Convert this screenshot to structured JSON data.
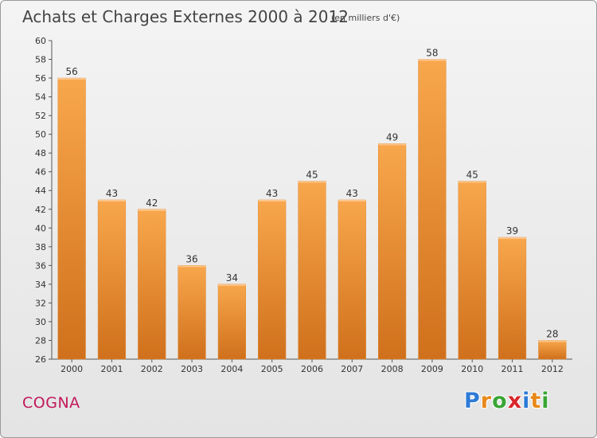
{
  "chart_data": {
    "type": "bar",
    "title": "Achats et Charges Externes 2000 à 2012",
    "unit": "(en milliers d'€)",
    "categories": [
      "2000",
      "2001",
      "2002",
      "2003",
      "2004",
      "2005",
      "2006",
      "2007",
      "2008",
      "2009",
      "2010",
      "2011",
      "2012"
    ],
    "values": [
      56,
      43,
      42,
      36,
      34,
      43,
      45,
      43,
      49,
      58,
      45,
      39,
      28
    ],
    "ylim": [
      26,
      60
    ],
    "ytick_step": 2,
    "grid": false,
    "bar_color": "#f59b3f",
    "bar_color_dark": "#d9731e"
  },
  "footer": {
    "commune": "COGNA",
    "logo": {
      "letters": [
        "P",
        "r",
        "o",
        "x",
        "i",
        "t",
        "i"
      ],
      "colors": [
        "#2e7bd6",
        "#e8891a",
        "#3aa635",
        "#d9262c",
        "#2e7bd6",
        "#e8891a",
        "#3aa635"
      ]
    }
  }
}
